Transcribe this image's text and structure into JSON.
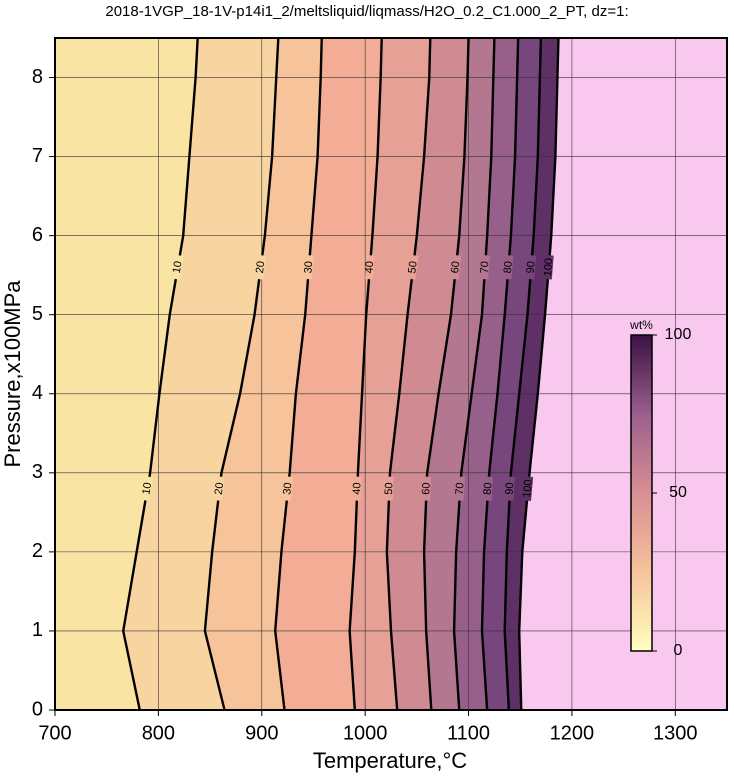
{
  "chart_data": {
    "type": "contour",
    "title": "2018-1VGP_18-1V-p14i1_2/meltsliquid/liqmass/H2O_0.2_C1.000_2_PT, dz=1:",
    "x_label": "Temperature,°C",
    "y_label": "Pressure,x100MPa",
    "xlim": [
      700,
      1350
    ],
    "xticks": [
      700,
      800,
      900,
      1000,
      1100,
      1200,
      1300
    ],
    "ylim": [
      0,
      8.5
    ],
    "yticks": [
      0,
      1,
      2,
      3,
      4,
      5,
      6,
      7,
      8
    ],
    "grid": true,
    "y": [
      0,
      1,
      2,
      3,
      4,
      5,
      6,
      7,
      8,
      8.5
    ],
    "low_color": "#fbf1a8",
    "high_color": "#f9c8ef",
    "series": [
      {
        "name": "10",
        "color": "#f9e4a4",
        "values": [
          782,
          766,
          779,
          792,
          801,
          811,
          824,
          830,
          836,
          838
        ]
      },
      {
        "name": "20",
        "color": "#f8d5a0",
        "values": [
          864,
          845,
          852,
          861,
          879,
          893,
          903,
          910,
          914,
          916
        ]
      },
      {
        "name": "30",
        "color": "#f6c39a",
        "values": [
          922,
          913,
          919,
          927,
          933,
          942,
          948,
          954,
          957,
          958
        ]
      },
      {
        "name": "40",
        "color": "#f3ad96",
        "values": [
          990,
          985,
          990,
          993,
          997,
          1001,
          1007,
          1012,
          1015,
          1016
        ]
      },
      {
        "name": "50",
        "color": "#e6a096",
        "values": [
          1031,
          1025,
          1021,
          1024,
          1033,
          1041,
          1050,
          1057,
          1062,
          1063
        ]
      },
      {
        "name": "60",
        "color": "#cf8b91",
        "values": [
          1064,
          1059,
          1057,
          1060,
          1071,
          1083,
          1091,
          1096,
          1099,
          1100
        ]
      },
      {
        "name": "70",
        "color": "#b47790",
        "values": [
          1091,
          1086,
          1088,
          1093,
          1103,
          1113,
          1118,
          1122,
          1124,
          1125
        ]
      },
      {
        "name": "80",
        "color": "#96608a",
        "values": [
          1118,
          1113,
          1115,
          1120,
          1128,
          1135,
          1141,
          1145,
          1147,
          1148
        ]
      },
      {
        "name": "90",
        "color": "#77467c",
        "values": [
          1139,
          1135,
          1137,
          1141,
          1149,
          1157,
          1163,
          1167,
          1169,
          1170
        ]
      },
      {
        "name": "100",
        "color": "#5e3066",
        "values": [
          1151,
          1149,
          1152,
          1159,
          1167,
          1174,
          1180,
          1184,
          1186,
          1187
        ]
      }
    ],
    "colorbar": {
      "label": "wt%",
      "ylim": [
        0,
        100
      ],
      "yticks": [
        0,
        50,
        100
      ],
      "colors": [
        "#ffffc0",
        "#f6c39a",
        "#d98e94",
        "#9a5f8c",
        "#3b1244"
      ]
    }
  }
}
